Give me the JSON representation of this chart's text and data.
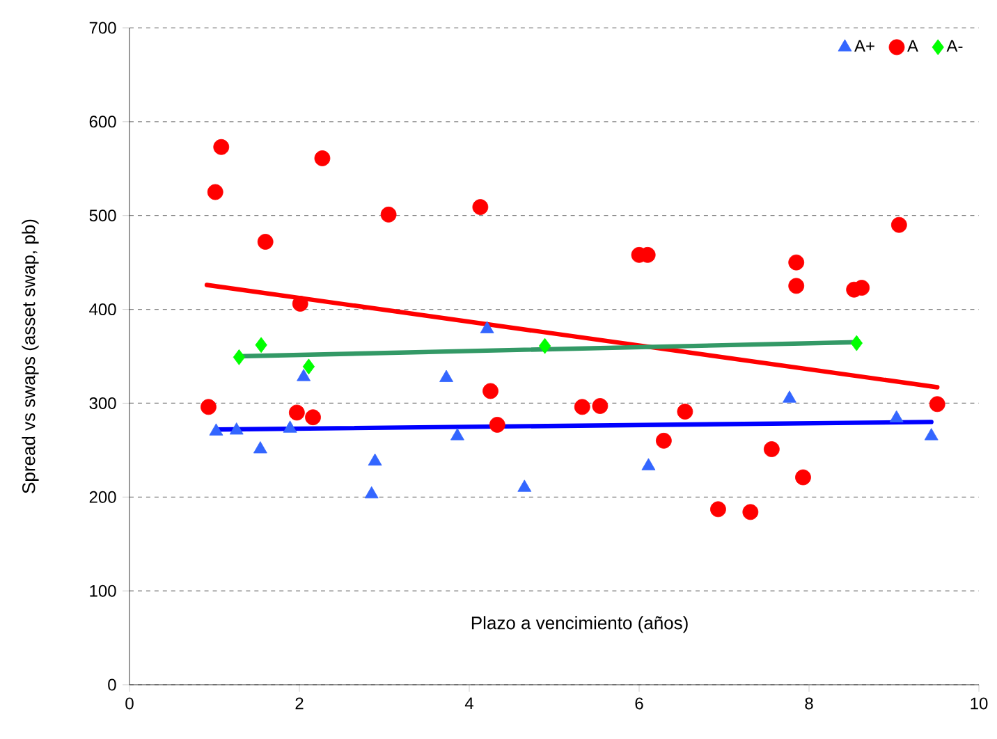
{
  "chart_data": {
    "type": "scatter",
    "xlabel": "Plazo a vencimiento (años)",
    "ylabel": "Spread vs swaps (asset swap, pb)",
    "xlim": [
      0,
      10
    ],
    "xticks": [
      0,
      2,
      4,
      6,
      8,
      10
    ],
    "ylim": [
      0,
      700
    ],
    "yticks": [
      0,
      100,
      200,
      300,
      400,
      500,
      600,
      700
    ],
    "grid": "y",
    "legend": "top right",
    "series": [
      {
        "name": "A+",
        "color": "#3366ff",
        "marker": "triangle",
        "x": [
          1.02,
          1.26,
          1.54,
          1.89,
          2.05,
          2.89,
          2.85,
          3.73,
          3.86,
          4.21,
          4.65,
          6.11,
          7.77,
          9.03,
          9.44
        ],
        "values": [
          270,
          271,
          251,
          273,
          328,
          238,
          203,
          327,
          265,
          379,
          210,
          233,
          305,
          284,
          265
        ]
      },
      {
        "name": "A",
        "color": "#ff0000",
        "marker": "circle",
        "x": [
          1.08,
          1.01,
          2.27,
          1.6,
          3.05,
          4.13,
          2.01,
          0.93,
          1.97,
          2.16,
          4.25,
          4.33,
          6.0,
          6.1,
          7.85,
          7.85,
          9.06,
          8.53,
          8.62,
          5.33,
          5.54,
          6.54,
          6.29,
          7.56,
          7.93,
          6.93,
          7.31,
          9.51
        ],
        "values": [
          573,
          525,
          561,
          472,
          501,
          509,
          406,
          296,
          290,
          285,
          313,
          277,
          458,
          458,
          450,
          425,
          490,
          421,
          423,
          296,
          297,
          291,
          260,
          251,
          221,
          187,
          184,
          299
        ]
      },
      {
        "name": "A-",
        "color": "#00ff00",
        "marker": "diamond",
        "x": [
          1.29,
          1.55,
          2.11,
          4.89,
          8.56
        ],
        "values": [
          349,
          362,
          339,
          361,
          364
        ]
      },
      {
        "type": "line",
        "color": "#0000ff",
        "marker": "none",
        "x": [
          1.03,
          9.44
        ],
        "values": [
          272,
          280
        ]
      },
      {
        "type": "line",
        "color": "#ff0000",
        "marker": "none",
        "x": [
          0.91,
          9.51
        ],
        "values": [
          426,
          317
        ]
      },
      {
        "type": "line",
        "color": "#339966",
        "marker": "none",
        "x": [
          1.29,
          8.56
        ],
        "values": [
          350,
          365
        ]
      }
    ]
  }
}
